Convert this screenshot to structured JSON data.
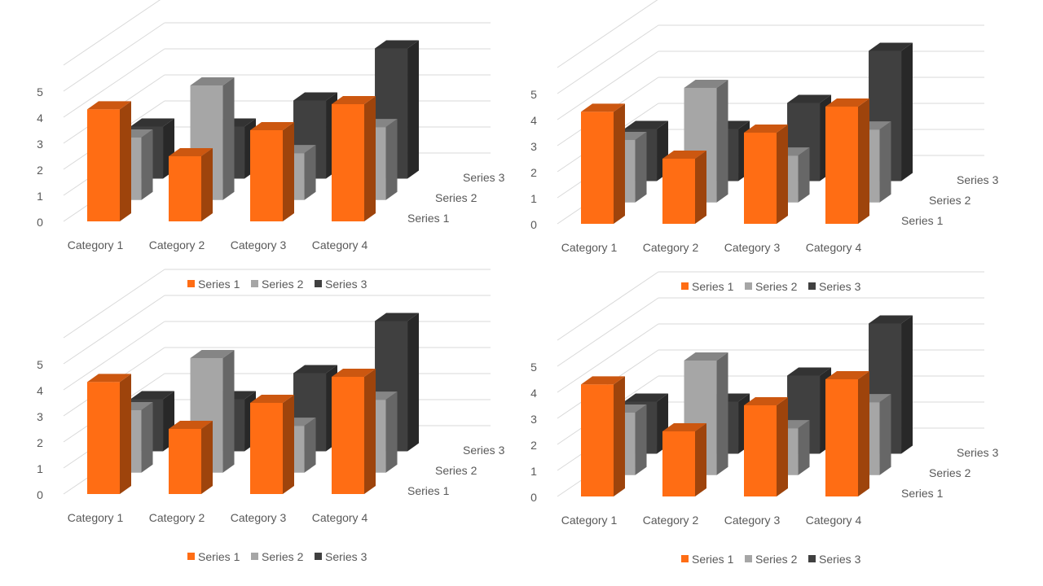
{
  "chart_data": [
    {
      "type": "bar",
      "categories": [
        "Category 1",
        "Category 2",
        "Category 3",
        "Category 4"
      ],
      "series": [
        {
          "name": "Series 1",
          "values": [
            4.3,
            2.5,
            3.5,
            4.5
          ]
        },
        {
          "name": "Series 2",
          "values": [
            2.4,
            4.4,
            1.8,
            2.8
          ]
        },
        {
          "name": "Series 3",
          "values": [
            2,
            2,
            3,
            5
          ]
        }
      ],
      "ylim": [
        0,
        5
      ],
      "yticks": [
        "0",
        "1",
        "2",
        "3",
        "4",
        "5"
      ],
      "grid": true,
      "legend": "bottom",
      "colors": [
        "#FF6D14",
        "#A6A6A6",
        "#404040"
      ]
    },
    {
      "type": "bar",
      "categories": [
        "Category 1",
        "Category 2",
        "Category 3",
        "Category 4"
      ],
      "series": [
        {
          "name": "Series 1",
          "values": [
            4.3,
            2.5,
            3.5,
            4.5
          ]
        },
        {
          "name": "Series 2",
          "values": [
            2.4,
            4.4,
            1.8,
            2.8
          ]
        },
        {
          "name": "Series 3",
          "values": [
            2,
            2,
            3,
            5
          ]
        }
      ],
      "ylim": [
        0,
        5
      ],
      "yticks": [
        "0",
        "1",
        "2",
        "3",
        "4",
        "5"
      ],
      "grid": true,
      "legend": "bottom",
      "colors": [
        "#FF6D14",
        "#A6A6A6",
        "#404040"
      ]
    },
    {
      "type": "bar",
      "categories": [
        "Category 1",
        "Category 2",
        "Category 3",
        "Category 4"
      ],
      "series": [
        {
          "name": "Series 1",
          "values": [
            4.3,
            2.5,
            3.5,
            4.5
          ]
        },
        {
          "name": "Series 2",
          "values": [
            2.4,
            4.4,
            1.8,
            2.8
          ]
        },
        {
          "name": "Series 3",
          "values": [
            2,
            2,
            3,
            5
          ]
        }
      ],
      "ylim": [
        0,
        5
      ],
      "yticks": [
        "0",
        "1",
        "2",
        "3",
        "4",
        "5"
      ],
      "grid": true,
      "legend": "bottom",
      "colors": [
        "#FF6D14",
        "#A6A6A6",
        "#404040"
      ]
    },
    {
      "type": "bar",
      "categories": [
        "Category 1",
        "Category 2",
        "Category 3",
        "Category 4"
      ],
      "series": [
        {
          "name": "Series 1",
          "values": [
            4.3,
            2.5,
            3.5,
            4.5
          ]
        },
        {
          "name": "Series 2",
          "values": [
            2.4,
            4.4,
            1.8,
            2.8
          ]
        },
        {
          "name": "Series 3",
          "values": [
            2,
            2,
            3,
            5
          ]
        }
      ],
      "ylim": [
        0,
        5
      ],
      "yticks": [
        "0",
        "1",
        "2",
        "3",
        "4",
        "5"
      ],
      "grid": true,
      "legend": "bottom",
      "colors": [
        "#FF6D14",
        "#A6A6A6",
        "#404040"
      ]
    }
  ]
}
